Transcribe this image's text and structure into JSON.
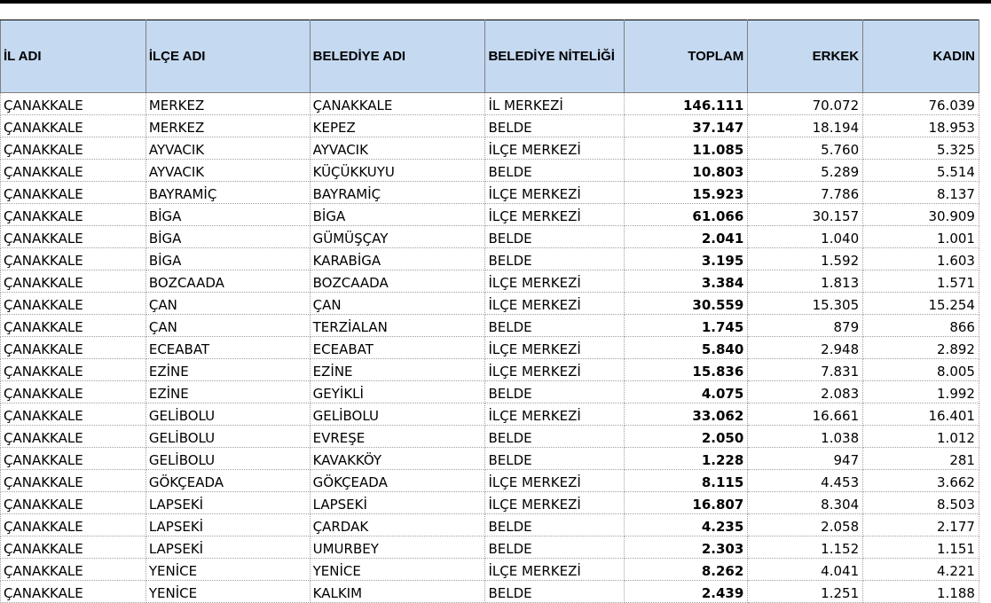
{
  "columns": [
    "İL ADI",
    "İLÇE ADI",
    "BELEDİYE ADI",
    "BELEDİYE NİTELİĞİ",
    "TOPLAM",
    "ERKEK",
    "KADIN"
  ],
  "rows": [
    [
      "ÇANAKKALE",
      "MERKEZ",
      "ÇANAKKALE",
      "İL MERKEZİ",
      "146.111",
      "70.072",
      "76.039"
    ],
    [
      "ÇANAKKALE",
      "MERKEZ",
      "KEPEZ",
      "BELDE",
      "37.147",
      "18.194",
      "18.953"
    ],
    [
      "ÇANAKKALE",
      "AYVACIK",
      "AYVACIK",
      "İLÇE MERKEZİ",
      "11.085",
      "5.760",
      "5.325"
    ],
    [
      "ÇANAKKALE",
      "AYVACIK",
      "KÜÇÜKKUYU",
      "BELDE",
      "10.803",
      "5.289",
      "5.514"
    ],
    [
      "ÇANAKKALE",
      "BAYRAMİÇ",
      "BAYRAMİÇ",
      "İLÇE MERKEZİ",
      "15.923",
      "7.786",
      "8.137"
    ],
    [
      "ÇANAKKALE",
      "BİGA",
      "BİGA",
      "İLÇE MERKEZİ",
      "61.066",
      "30.157",
      "30.909"
    ],
    [
      "ÇANAKKALE",
      "BİGA",
      "GÜMÜŞÇAY",
      "BELDE",
      "2.041",
      "1.040",
      "1.001"
    ],
    [
      "ÇANAKKALE",
      "BİGA",
      "KARABİGA",
      "BELDE",
      "3.195",
      "1.592",
      "1.603"
    ],
    [
      "ÇANAKKALE",
      "BOZCAADA",
      "BOZCAADA",
      "İLÇE MERKEZİ",
      "3.384",
      "1.813",
      "1.571"
    ],
    [
      "ÇANAKKALE",
      "ÇAN",
      "ÇAN",
      "İLÇE MERKEZİ",
      "30.559",
      "15.305",
      "15.254"
    ],
    [
      "ÇANAKKALE",
      "ÇAN",
      "TERZİALAN",
      "BELDE",
      "1.745",
      "879",
      "866"
    ],
    [
      "ÇANAKKALE",
      "ECEABAT",
      "ECEABAT",
      "İLÇE MERKEZİ",
      "5.840",
      "2.948",
      "2.892"
    ],
    [
      "ÇANAKKALE",
      "EZİNE",
      "EZİNE",
      "İLÇE MERKEZİ",
      "15.836",
      "7.831",
      "8.005"
    ],
    [
      "ÇANAKKALE",
      "EZİNE",
      "GEYİKLİ",
      "BELDE",
      "4.075",
      "2.083",
      "1.992"
    ],
    [
      "ÇANAKKALE",
      "GELİBOLU",
      "GELİBOLU",
      "İLÇE MERKEZİ",
      "33.062",
      "16.661",
      "16.401"
    ],
    [
      "ÇANAKKALE",
      "GELİBOLU",
      "EVREŞE",
      "BELDE",
      "2.050",
      "1.038",
      "1.012"
    ],
    [
      "ÇANAKKALE",
      "GELİBOLU",
      "KAVAKKÖY",
      "BELDE",
      "1.228",
      "947",
      "281"
    ],
    [
      "ÇANAKKALE",
      "GÖKÇEADA",
      "GÖKÇEADA",
      "İLÇE MERKEZİ",
      "8.115",
      "4.453",
      "3.662"
    ],
    [
      "ÇANAKKALE",
      "LAPSEKİ",
      "LAPSEKİ",
      "İLÇE MERKEZİ",
      "16.807",
      "8.304",
      "8.503"
    ],
    [
      "ÇANAKKALE",
      "LAPSEKİ",
      "ÇARDAK",
      "BELDE",
      "4.235",
      "2.058",
      "2.177"
    ],
    [
      "ÇANAKKALE",
      "LAPSEKİ",
      "UMURBEY",
      "BELDE",
      "2.303",
      "1.152",
      "1.151"
    ],
    [
      "ÇANAKKALE",
      "YENİCE",
      "YENİCE",
      "İLÇE MERKEZİ",
      "8.262",
      "4.041",
      "4.221"
    ],
    [
      "ÇANAKKALE",
      "YENİCE",
      "KALKIM",
      "BELDE",
      "2.439",
      "1.251",
      "1.188"
    ]
  ]
}
